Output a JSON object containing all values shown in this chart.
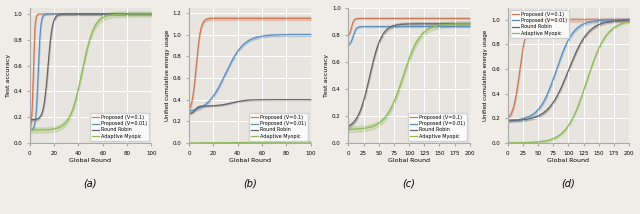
{
  "colors": {
    "proposed_v01": "#C97B5A",
    "proposed_v001": "#5B8FC4",
    "round_robin": "#666666",
    "adaptive_myopic": "#8BBB55"
  },
  "legend_labels": [
    "Proposed (V=0.1)",
    "Proposed (V=0.01)",
    "Round Robin",
    "Adaptive Myopic"
  ],
  "xlabel": "Global Round",
  "ylabel_acc": "Test accuracy",
  "ylabel_energy": "Unified cumulative energy usage",
  "subplot_labels": [
    "(a)",
    "(b)",
    "(c)",
    "(d)"
  ],
  "background_color": "#f0ece8",
  "plot_bg": "#e8e4e0",
  "grid_color": "#ffffff",
  "figsize": [
    6.4,
    2.14
  ],
  "dpi": 100
}
